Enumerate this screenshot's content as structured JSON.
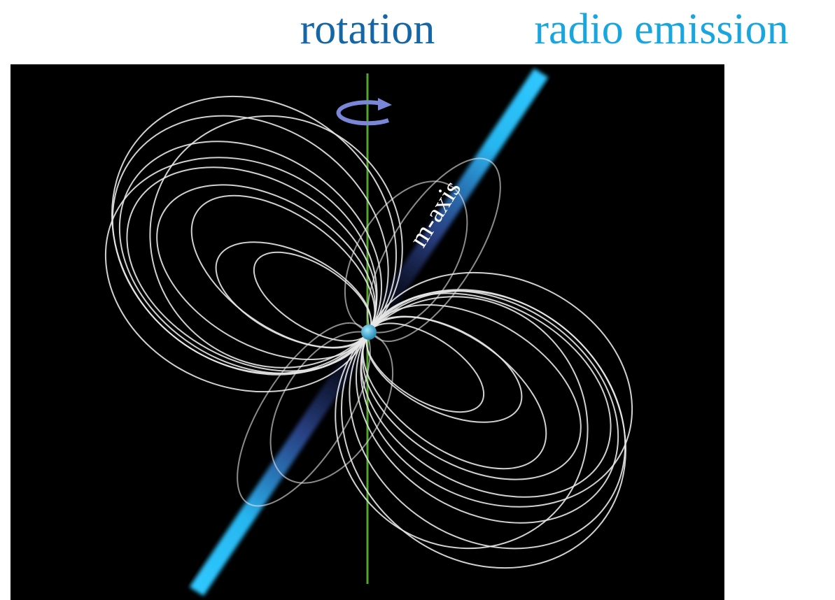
{
  "labels": {
    "rotation": "rotation",
    "radio_emission": "radio emission",
    "m_axis": "m-axis"
  }
}
